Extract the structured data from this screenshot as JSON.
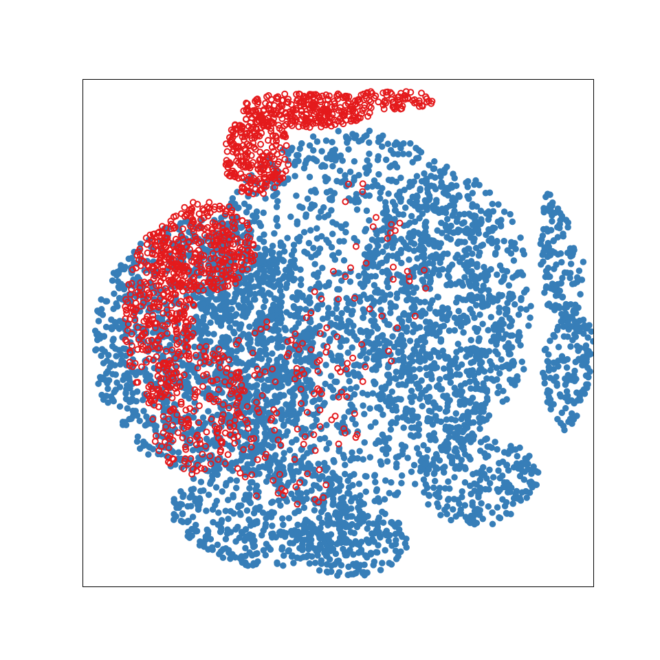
{
  "chart_data": {
    "type": "scatter",
    "title": "",
    "xlabel": "",
    "ylabel": "",
    "xticks": [],
    "yticks": [],
    "grid": false,
    "legend": "none",
    "xlim": [
      -1.0,
      1.0
    ],
    "ylim": [
      -1.0,
      1.0
    ],
    "series": [
      {
        "marker": "filled-circle",
        "color": "#377eb8",
        "regions": [
          {
            "cx": 0.06,
            "cy": 0.06,
            "rx": 0.62,
            "ry": 0.74,
            "n": 1500
          },
          {
            "cx": 0.42,
            "cy": 0.1,
            "rx": 0.34,
            "ry": 0.55,
            "n": 650
          },
          {
            "cx": 0.88,
            "cy": 0.34,
            "rx": 0.09,
            "ry": 0.32,
            "n": 200
          },
          {
            "cx": 0.91,
            "cy": -0.15,
            "rx": 0.11,
            "ry": 0.24,
            "n": 160
          },
          {
            "cx": 0.55,
            "cy": -0.58,
            "rx": 0.24,
            "ry": 0.18,
            "n": 220
          },
          {
            "cx": -0.52,
            "cy": -0.05,
            "rx": 0.44,
            "ry": 0.5,
            "n": 1300
          },
          {
            "cx": -0.28,
            "cy": -0.7,
            "rx": 0.38,
            "ry": 0.22,
            "n": 450
          },
          {
            "cx": 0.05,
            "cy": -0.82,
            "rx": 0.22,
            "ry": 0.14,
            "n": 200
          }
        ]
      },
      {
        "marker": "open-circle",
        "color": "#e41a1c",
        "regions": [
          {
            "cx": -0.12,
            "cy": 0.88,
            "rx": 0.26,
            "ry": 0.07,
            "n": 260
          },
          {
            "cx": 0.22,
            "cy": 0.92,
            "rx": 0.16,
            "ry": 0.04,
            "n": 70
          },
          {
            "cx": -0.32,
            "cy": 0.7,
            "rx": 0.13,
            "ry": 0.16,
            "n": 240
          },
          {
            "cx": -0.52,
            "cy": 0.34,
            "rx": 0.2,
            "ry": 0.18,
            "n": 320
          },
          {
            "cx": -0.7,
            "cy": 0.06,
            "rx": 0.14,
            "ry": 0.34,
            "n": 320
          },
          {
            "cx": -0.55,
            "cy": -0.3,
            "rx": 0.2,
            "ry": 0.26,
            "n": 180
          },
          {
            "cx": -0.2,
            "cy": -0.3,
            "rx": 0.3,
            "ry": 0.4,
            "n": 120
          },
          {
            "cx": 0.1,
            "cy": 0.2,
            "rx": 0.25,
            "ry": 0.4,
            "n": 40
          }
        ]
      }
    ]
  }
}
